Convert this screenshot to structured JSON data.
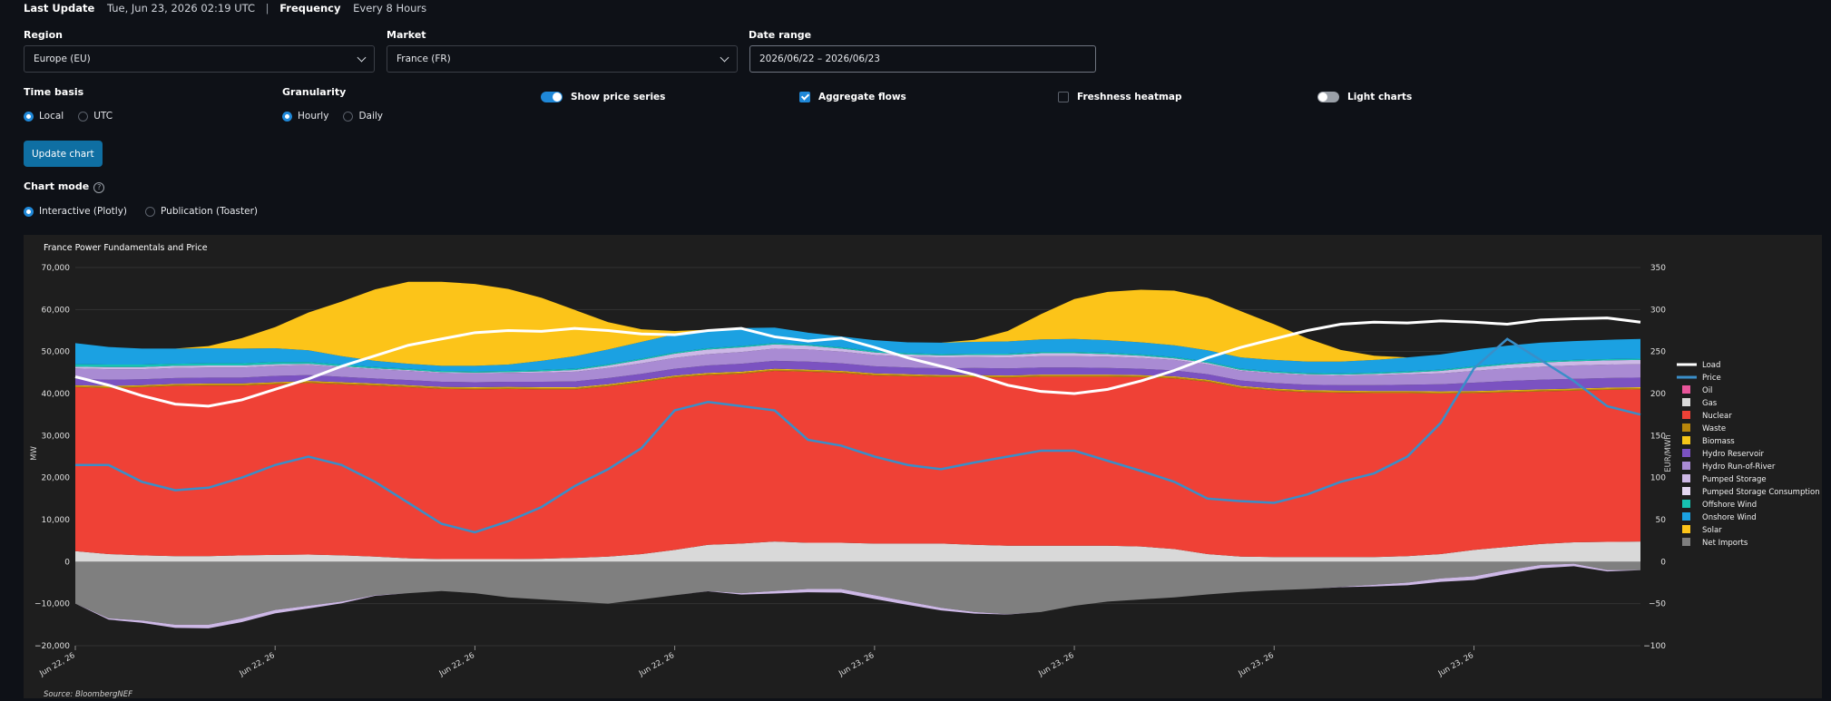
{
  "header": {
    "last_update_label": "Last Update",
    "last_update_value": "Tue, Jun 23, 2026 02:19 UTC",
    "separator": "|",
    "frequency_label": "Frequency",
    "frequency_value": "Every 8 Hours"
  },
  "filters": {
    "region": {
      "label": "Region",
      "value": "Europe (EU)"
    },
    "market": {
      "label": "Market",
      "value": "France (FR)"
    },
    "date_range": {
      "label": "Date range",
      "value": "2026/06/22 – 2026/06/23"
    }
  },
  "time_basis": {
    "label": "Time basis",
    "options": [
      "Local",
      "UTC"
    ],
    "selected": "Local"
  },
  "granularity": {
    "label": "Granularity",
    "options": [
      "Hourly",
      "Daily"
    ],
    "selected": "Hourly"
  },
  "toggles": {
    "show_price_series": {
      "label": "Show price series",
      "on": true
    },
    "aggregate_flows": {
      "label": "Aggregate flows",
      "checked": true
    },
    "freshness_heatmap": {
      "label": "Freshness heatmap",
      "checked": false
    },
    "light_charts": {
      "label": "Light charts",
      "on": false
    }
  },
  "update_button": "Update chart",
  "chart_mode": {
    "label": "Chart mode",
    "help_icon": "question-circle-icon",
    "options": [
      "Interactive (Plotly)",
      "Publication (Toaster)"
    ],
    "selected": "Interactive (Plotly)"
  },
  "chart_data": {
    "type": "area",
    "title": "France Power Fundamentals and Price",
    "ylabel": "MW",
    "y2label": "EUR/MWh",
    "source": "Source: BloombergNEF",
    "ylim": [
      -20000,
      70000
    ],
    "y2lim": [
      -100,
      350
    ],
    "yticks": [
      "70,000",
      "60,000",
      "50,000",
      "40,000",
      "30,000",
      "20,000",
      "10,000",
      "0",
      "−10,000",
      "−20,000"
    ],
    "y2ticks": [
      "350",
      "300",
      "250",
      "200",
      "150",
      "100",
      "50",
      "0",
      "−50",
      "−100"
    ],
    "xtick_labels": [
      "Jun 22, 26",
      "Jun 22, 26",
      "Jun 22, 26",
      "Jun 22, 26",
      "Jun 23, 26",
      "Jun 23, 26",
      "Jun 23, 26",
      "Jun 23, 26"
    ],
    "grid": true,
    "legend_position": "right",
    "x": [
      0,
      1,
      2,
      3,
      4,
      5,
      6,
      7,
      8,
      9,
      10,
      11,
      12,
      13,
      14,
      15,
      16,
      17,
      18,
      19,
      20,
      21,
      22,
      23,
      24,
      25,
      26,
      27,
      28,
      29,
      30,
      31,
      32,
      33,
      34,
      35,
      36,
      37,
      38,
      39,
      40,
      41,
      42,
      43,
      44,
      45,
      46,
      47
    ],
    "stack_series": [
      {
        "name": "Oil",
        "color": "#e8559a",
        "values": [
          0,
          0,
          0,
          0,
          0,
          0,
          0,
          0,
          0,
          0,
          0,
          0,
          0,
          0,
          0,
          0,
          0,
          0,
          0,
          0,
          0,
          0,
          0,
          0,
          0,
          0,
          0,
          0,
          0,
          0,
          0,
          0,
          0,
          0,
          0,
          0,
          0,
          0,
          0,
          0,
          0,
          0,
          0,
          0,
          0,
          0,
          0,
          0
        ]
      },
      {
        "name": "Gas",
        "color": "#d9d9d9",
        "values": [
          2500,
          1800,
          1500,
          1300,
          1300,
          1500,
          1600,
          1700,
          1500,
          1200,
          800,
          600,
          600,
          600,
          700,
          900,
          1200,
          1800,
          2800,
          4000,
          4300,
          4800,
          4500,
          4500,
          4300,
          4300,
          4300,
          4000,
          3800,
          3800,
          3800,
          3800,
          3600,
          3000,
          1800,
          1200,
          1100,
          1100,
          1100,
          1100,
          1300,
          1800,
          2800,
          3500,
          4200,
          4600,
          4700,
          4800
        ]
      },
      {
        "name": "Nuclear",
        "color": "#ef4136",
        "values": [
          39000,
          39500,
          40000,
          40500,
          40600,
          40400,
          40600,
          40800,
          40700,
          40700,
          40700,
          40500,
          40400,
          40500,
          40300,
          40100,
          40500,
          40900,
          41000,
          40400,
          40400,
          40600,
          40700,
          40400,
          40000,
          39800,
          39600,
          39900,
          40000,
          40200,
          40200,
          40200,
          40300,
          40600,
          41000,
          40100,
          39600,
          39200,
          39100,
          39000,
          38800,
          38200,
          37300,
          36800,
          36300,
          36100,
          36200,
          36200
        ]
      },
      {
        "name": "Waste",
        "color": "#b8860b",
        "values": [
          300,
          300,
          300,
          300,
          300,
          300,
          300,
          300,
          300,
          300,
          300,
          300,
          300,
          300,
          300,
          300,
          300,
          300,
          300,
          300,
          300,
          300,
          300,
          300,
          300,
          300,
          300,
          300,
          300,
          300,
          300,
          300,
          300,
          300,
          300,
          300,
          300,
          300,
          300,
          300,
          300,
          300,
          300,
          300,
          300,
          300,
          300,
          300
        ]
      },
      {
        "name": "Biomass",
        "color": "#f5c518",
        "values": [
          200,
          200,
          200,
          200,
          200,
          200,
          200,
          200,
          200,
          200,
          200,
          200,
          200,
          200,
          200,
          200,
          200,
          200,
          200,
          200,
          200,
          200,
          200,
          200,
          200,
          200,
          200,
          200,
          200,
          200,
          200,
          200,
          200,
          200,
          200,
          200,
          200,
          200,
          200,
          200,
          200,
          200,
          200,
          200,
          200,
          200,
          200,
          200
        ]
      },
      {
        "name": "Hydro Reservoir",
        "color": "#7b52c1",
        "values": [
          1500,
          1500,
          1400,
          1400,
          1400,
          1400,
          1500,
          1400,
          1300,
          1200,
          1200,
          1200,
          1200,
          1200,
          1300,
          1400,
          1500,
          1500,
          1600,
          1800,
          1900,
          1900,
          1900,
          1800,
          1700,
          1600,
          1600,
          1700,
          1700,
          1700,
          1700,
          1600,
          1500,
          1400,
          1300,
          1300,
          1300,
          1300,
          1300,
          1400,
          1500,
          1700,
          2000,
          2200,
          2300,
          2300,
          2300,
          2300
        ]
      },
      {
        "name": "Hydro Run-of-River",
        "color": "#a98bd3",
        "values": [
          2500,
          2500,
          2400,
          2400,
          2400,
          2400,
          2400,
          2400,
          2300,
          2200,
          2200,
          2100,
          2100,
          2100,
          2200,
          2300,
          2400,
          2500,
          2600,
          2700,
          2800,
          2900,
          2900,
          2800,
          2700,
          2600,
          2600,
          2600,
          2600,
          2700,
          2700,
          2700,
          2600,
          2500,
          2400,
          2300,
          2300,
          2300,
          2300,
          2400,
          2500,
          2600,
          2800,
          3000,
          3100,
          3200,
          3200,
          3200
        ]
      },
      {
        "name": "Pumped Storage",
        "color": "#cdb8e6",
        "values": [
          400,
          500,
          500,
          500,
          500,
          500,
          400,
          300,
          200,
          200,
          200,
          200,
          200,
          200,
          300,
          400,
          600,
          800,
          1000,
          1100,
          1100,
          1000,
          900,
          700,
          600,
          500,
          500,
          500,
          600,
          700,
          700,
          600,
          500,
          400,
          300,
          200,
          200,
          200,
          200,
          300,
          400,
          600,
          800,
          900,
          1000,
          1000,
          1000,
          1000
        ]
      },
      {
        "name": "Pumped Storage Consumption",
        "color": "#e3d7f1",
        "values": [
          0,
          0,
          0,
          0,
          0,
          0,
          0,
          0,
          0,
          0,
          0,
          0,
          0,
          0,
          0,
          0,
          0,
          0,
          0,
          0,
          0,
          0,
          0,
          0,
          0,
          0,
          0,
          0,
          0,
          0,
          0,
          0,
          0,
          0,
          0,
          0,
          0,
          0,
          0,
          0,
          0,
          0,
          0,
          0,
          0,
          0,
          0,
          0
        ]
      },
      {
        "name": "Offshore Wind",
        "color": "#17c3b2",
        "values": [
          600,
          600,
          600,
          500,
          500,
          500,
          500,
          400,
          400,
          300,
          300,
          300,
          300,
          300,
          300,
          300,
          300,
          300,
          300,
          300,
          300,
          300,
          300,
          300,
          300,
          300,
          300,
          300,
          300,
          300,
          300,
          300,
          300,
          300,
          300,
          300,
          300,
          300,
          300,
          300,
          300,
          300,
          300,
          300,
          300,
          300,
          300,
          300
        ]
      },
      {
        "name": "Onshore Wind",
        "color": "#1ba1e2",
        "values": [
          5000,
          4200,
          3800,
          3600,
          3600,
          3500,
          3300,
          2800,
          2000,
          1500,
          1200,
          1200,
          1300,
          1500,
          2200,
          3000,
          3500,
          4000,
          4300,
          4400,
          4300,
          3700,
          2800,
          2600,
          2600,
          2600,
          2700,
          2800,
          2900,
          3000,
          3100,
          3000,
          2900,
          2800,
          2700,
          2700,
          2700,
          2700,
          2800,
          3000,
          3300,
          3600,
          4000,
          4200,
          4400,
          4500,
          4600,
          4700
        ]
      },
      {
        "name": "Solar",
        "color": "#fcc419",
        "values": [
          0,
          0,
          0,
          0,
          500,
          2500,
          5000,
          9000,
          13000,
          17000,
          19500,
          20000,
          19500,
          18000,
          15000,
          11000,
          6500,
          3000,
          800,
          0,
          0,
          0,
          0,
          0,
          0,
          0,
          0,
          500,
          2500,
          6000,
          9500,
          11500,
          12500,
          13000,
          12500,
          11000,
          8500,
          5500,
          2800,
          1000,
          0,
          0,
          0,
          0,
          0,
          0,
          0,
          0
        ]
      },
      {
        "name": "Net Imports",
        "color": "#7f7f7f",
        "values": [
          -10000,
          -13500,
          -14000,
          -15000,
          -15000,
          -13500,
          -11500,
          -10500,
          -9500,
          -8000,
          -7500,
          -7000,
          -7500,
          -8500,
          -9000,
          -9500,
          -10000,
          -9000,
          -8000,
          -7000,
          -7500,
          -7000,
          -6500,
          -6500,
          -8000,
          -9500,
          -11000,
          -12000,
          -12500,
          -12000,
          -10500,
          -9500,
          -9000,
          -8500,
          -7800,
          -7200,
          -6800,
          -6500,
          -6000,
          -5500,
          -5000,
          -4000,
          -3500,
          -2000,
          -800,
          -500,
          -2000,
          -2000
        ]
      }
    ],
    "load_series": {
      "name": "Load",
      "color": "#ffffff",
      "values": [
        44000,
        42000,
        39500,
        37500,
        37000,
        38500,
        41000,
        43500,
        46500,
        49000,
        51500,
        53000,
        54500,
        55000,
        54800,
        55500,
        55000,
        54200,
        54000,
        55000,
        55500,
        53500,
        52500,
        53200,
        51000,
        48500,
        46500,
        44500,
        42000,
        40500,
        40000,
        41000,
        43000,
        45500,
        48500,
        51000,
        53000,
        55000,
        56500,
        57000,
        56800,
        57300,
        57000,
        56500,
        57500,
        57800,
        58000,
        57000
      ]
    },
    "price_series": {
      "name": "Price",
      "color": "#3a8ec8",
      "values": [
        115,
        115,
        95,
        85,
        88,
        100,
        115,
        125,
        115,
        95,
        70,
        45,
        35,
        48,
        65,
        90,
        110,
        135,
        180,
        190,
        185,
        180,
        145,
        138,
        125,
        115,
        110,
        118,
        125,
        132,
        132,
        120,
        108,
        95,
        75,
        72,
        70,
        80,
        95,
        105,
        125,
        165,
        230,
        265,
        240,
        215,
        185,
        175
      ]
    }
  }
}
